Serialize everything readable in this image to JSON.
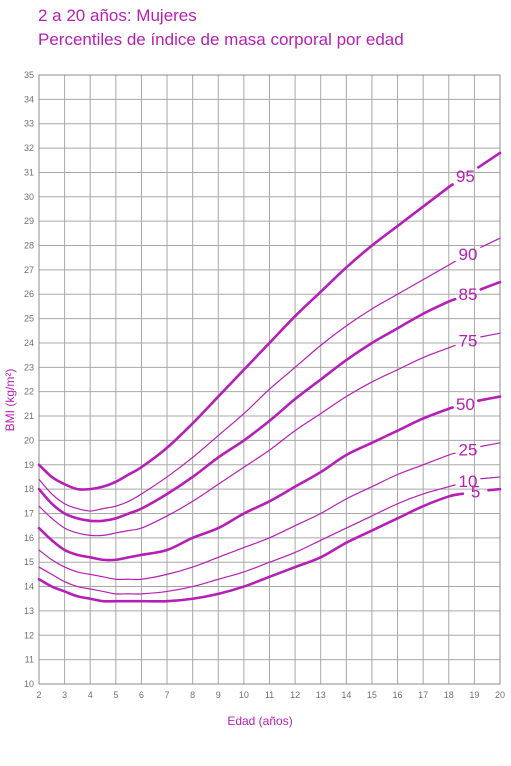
{
  "chart_data": {
    "type": "line",
    "title": "2 a 20 años: Mujeres",
    "subtitle": "Percentiles de índice de masa corporal por edad",
    "xlabel": "Edad (años)",
    "ylabel": "BMI (kg/m²)",
    "xlim": [
      2,
      20
    ],
    "ylim": [
      10,
      35
    ],
    "x_ticks": [
      "2",
      "3",
      "4",
      "5",
      "6",
      "7",
      "8",
      "9",
      "10",
      "11",
      "12",
      "13",
      "14",
      "15",
      "16",
      "17",
      "18",
      "19",
      "20"
    ],
    "y_ticks": [
      "10",
      "11",
      "12",
      "13",
      "14",
      "15",
      "16",
      "17",
      "18",
      "19",
      "20",
      "21",
      "22",
      "23",
      "24",
      "25",
      "26",
      "27",
      "28",
      "29",
      "30",
      "31",
      "32",
      "33",
      "34",
      "35"
    ],
    "grid": true,
    "line_color": "#b61fb5",
    "x": [
      2,
      2.5,
      3,
      3.5,
      4,
      4.5,
      5,
      5.5,
      6,
      7,
      8,
      9,
      10,
      11,
      12,
      13,
      14,
      15,
      16,
      17,
      18,
      19,
      20
    ],
    "series": [
      {
        "name": "95",
        "bold": true,
        "values": [
          19.0,
          18.5,
          18.2,
          18.0,
          18.0,
          18.1,
          18.3,
          18.6,
          18.9,
          19.7,
          20.7,
          21.8,
          22.9,
          24.0,
          25.1,
          26.1,
          27.1,
          28.0,
          28.8,
          29.6,
          30.4,
          31.1,
          31.8
        ]
      },
      {
        "name": "90",
        "bold": false,
        "values": [
          18.4,
          17.8,
          17.4,
          17.2,
          17.1,
          17.2,
          17.3,
          17.5,
          17.8,
          18.5,
          19.3,
          20.2,
          21.1,
          22.1,
          23.0,
          23.9,
          24.7,
          25.4,
          26.0,
          26.6,
          27.2,
          27.8,
          28.3
        ]
      },
      {
        "name": "85",
        "bold": true,
        "values": [
          18.0,
          17.4,
          17.0,
          16.8,
          16.7,
          16.7,
          16.8,
          17.0,
          17.2,
          17.8,
          18.5,
          19.3,
          20.0,
          20.8,
          21.7,
          22.5,
          23.3,
          24.0,
          24.6,
          25.2,
          25.7,
          26.1,
          26.5
        ]
      },
      {
        "name": "75",
        "bold": false,
        "values": [
          17.3,
          16.8,
          16.4,
          16.2,
          16.1,
          16.1,
          16.2,
          16.3,
          16.4,
          16.9,
          17.5,
          18.2,
          18.9,
          19.6,
          20.4,
          21.1,
          21.8,
          22.4,
          22.9,
          23.4,
          23.8,
          24.2,
          24.4
        ]
      },
      {
        "name": "50",
        "bold": true,
        "values": [
          16.4,
          15.9,
          15.5,
          15.3,
          15.2,
          15.1,
          15.1,
          15.2,
          15.3,
          15.5,
          16.0,
          16.4,
          17.0,
          17.5,
          18.1,
          18.7,
          19.4,
          19.9,
          20.4,
          20.9,
          21.3,
          21.6,
          21.8
        ]
      },
      {
        "name": "25",
        "bold": false,
        "values": [
          15.5,
          15.1,
          14.8,
          14.6,
          14.5,
          14.4,
          14.3,
          14.3,
          14.3,
          14.5,
          14.8,
          15.2,
          15.6,
          16.0,
          16.5,
          17.0,
          17.6,
          18.1,
          18.6,
          19.0,
          19.4,
          19.7,
          19.9
        ]
      },
      {
        "name": "10",
        "bold": false,
        "values": [
          14.8,
          14.5,
          14.2,
          14.0,
          13.9,
          13.8,
          13.7,
          13.7,
          13.7,
          13.8,
          14.0,
          14.3,
          14.6,
          15.0,
          15.4,
          15.9,
          16.4,
          16.9,
          17.4,
          17.8,
          18.1,
          18.4,
          18.5
        ]
      },
      {
        "name": "5",
        "bold": true,
        "values": [
          14.3,
          14.0,
          13.8,
          13.6,
          13.5,
          13.4,
          13.4,
          13.4,
          13.4,
          13.4,
          13.5,
          13.7,
          14.0,
          14.4,
          14.8,
          15.2,
          15.8,
          16.3,
          16.8,
          17.3,
          17.7,
          17.9,
          18.0
        ]
      }
    ]
  }
}
